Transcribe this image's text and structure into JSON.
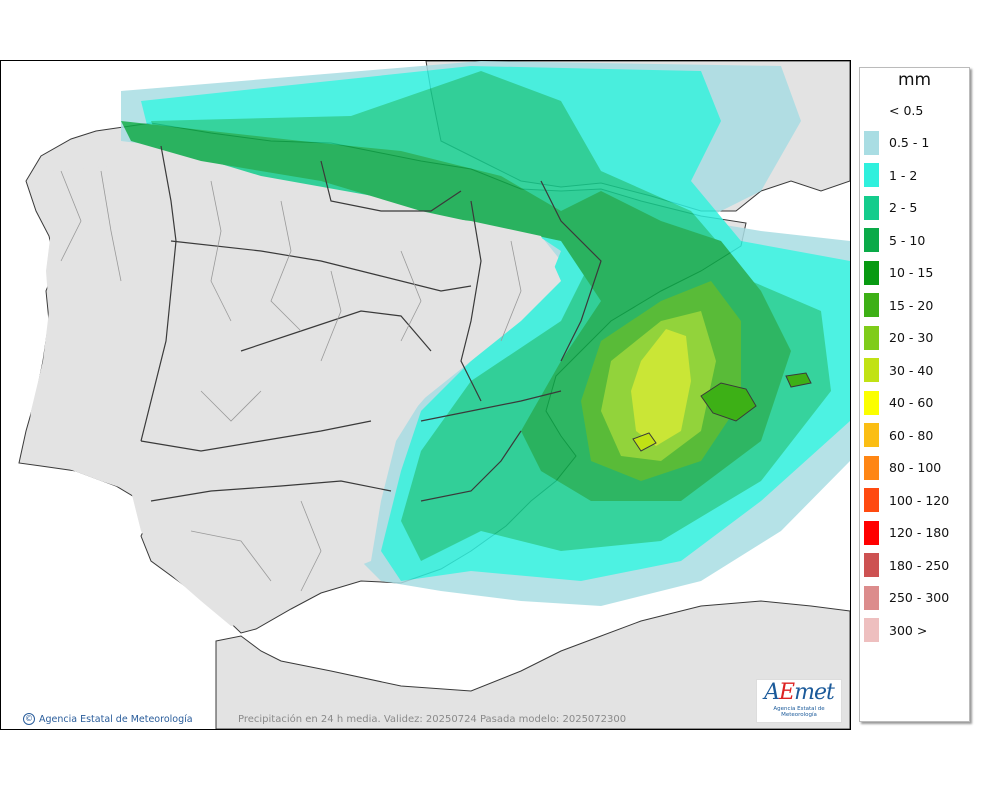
{
  "map": {
    "caption": "Precipitación en 24 h media. Validez: 20250724 Pasada modelo: 2025072300",
    "copyright": "Agencia Estatal de Meteorología"
  },
  "logo": {
    "word_a": "A",
    "word_e": "E",
    "word_rest": "met",
    "subtitle": "Agencia Estatal de Meteorología"
  },
  "legend": {
    "title": "mm",
    "items": [
      {
        "label": "< 0.5",
        "color": null
      },
      {
        "label": "0.5 - 1",
        "color": "#a9dde3"
      },
      {
        "label": "1 - 2",
        "color": "#2ff0dd"
      },
      {
        "label": "2 - 5",
        "color": "#14cc8c"
      },
      {
        "label": "5 - 10",
        "color": "#0aaa48"
      },
      {
        "label": "10 - 15",
        "color": "#089a12"
      },
      {
        "label": "15 - 20",
        "color": "#3db016"
      },
      {
        "label": "20 - 30",
        "color": "#7fcc1a"
      },
      {
        "label": "30 - 40",
        "color": "#c1e214"
      },
      {
        "label": "40 - 60",
        "color": "#fbff00"
      },
      {
        "label": "60 - 80",
        "color": "#fbbe14"
      },
      {
        "label": "80 - 100",
        "color": "#ff8614"
      },
      {
        "label": "100 - 120",
        "color": "#ff4a10"
      },
      {
        "label": "120 - 180",
        "color": "#ff0000"
      },
      {
        "label": "180 - 250",
        "color": "#cd5252"
      },
      {
        "label": "250 - 300",
        "color": "#dc8c8c"
      },
      {
        "label": "300 >",
        "color": "#eebfbf"
      }
    ]
  },
  "colors": {
    "land": "#e3e3e3",
    "sea": "#ffffff",
    "border": "#3a3a3a",
    "province_border": "#9a9a9a"
  }
}
